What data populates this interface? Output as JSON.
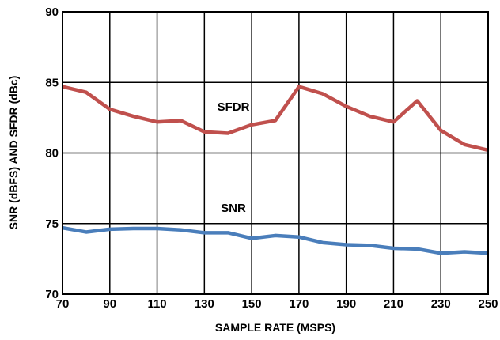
{
  "chart_data": {
    "type": "line",
    "xlabel": "SAMPLE RATE (MSPS)",
    "ylabel": "SNR (dBFS) AND SFDR (dBc)",
    "xlim": [
      70,
      250
    ],
    "ylim": [
      70,
      90
    ],
    "xticks": [
      70,
      90,
      110,
      130,
      150,
      170,
      190,
      210,
      230,
      250
    ],
    "yticks": [
      70,
      75,
      80,
      85,
      90
    ],
    "grid": true,
    "x": [
      70,
      80,
      90,
      100,
      110,
      120,
      130,
      140,
      150,
      160,
      170,
      180,
      190,
      200,
      210,
      220,
      230,
      240,
      250
    ],
    "series": [
      {
        "name": "SFDR",
        "color": "#c0504d",
        "values": [
          84.7,
          84.3,
          83.1,
          82.6,
          82.2,
          82.3,
          81.5,
          81.4,
          82.0,
          82.3,
          84.7,
          84.2,
          83.3,
          82.6,
          82.2,
          83.7,
          81.6,
          80.6,
          80.2
        ]
      },
      {
        "name": "SNR",
        "color": "#4a7ebb",
        "values": [
          74.7,
          74.4,
          74.6,
          74.65,
          74.65,
          74.55,
          74.35,
          74.35,
          73.95,
          74.15,
          74.05,
          73.65,
          73.5,
          73.45,
          73.25,
          73.2,
          72.9,
          73.0,
          72.9
        ]
      }
    ]
  }
}
